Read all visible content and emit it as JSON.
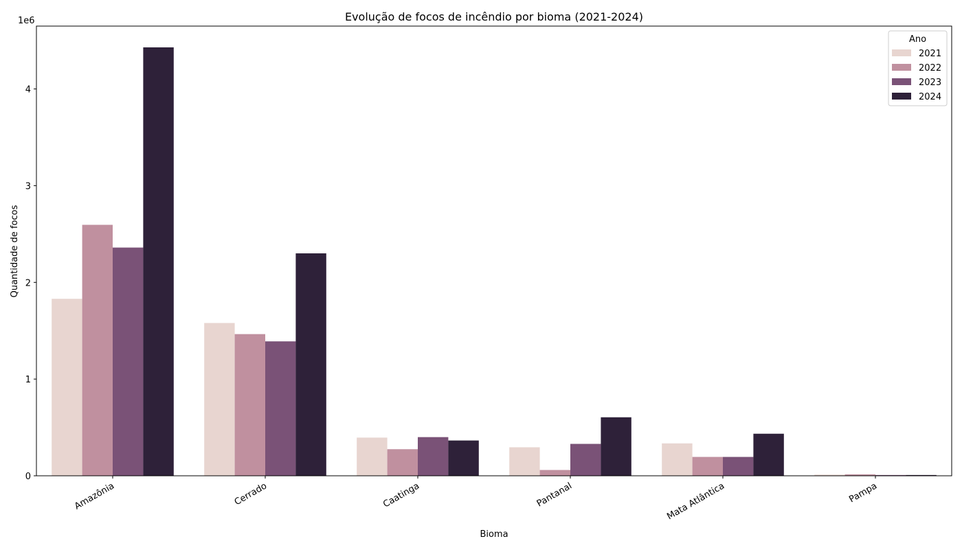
{
  "chart_data": {
    "type": "bar",
    "title": "Evolução de focos de incêndio por bioma (2021-2024)",
    "xlabel": "Bioma",
    "ylabel": "Quantidade de focos",
    "y_offset_text": "1e6",
    "ylim": [
      0,
      4650000
    ],
    "y_ticks": [
      0,
      1000000,
      2000000,
      3000000,
      4000000
    ],
    "y_tick_labels": [
      "0",
      "1",
      "2",
      "3",
      "4"
    ],
    "x_tick_rotation_deg": 30,
    "categories": [
      "Amazônia",
      "Cerrado",
      "Caatinga",
      "Pantanal",
      "Mata Atlântica",
      "Pampa"
    ],
    "series": [
      {
        "name": "2021",
        "color": "#e8d5d0",
        "values": [
          1830000,
          1580000,
          395000,
          295000,
          335000,
          12000
        ]
      },
      {
        "name": "2022",
        "color": "#c0909f",
        "values": [
          2595000,
          1465000,
          275000,
          60000,
          195000,
          15000
        ]
      },
      {
        "name": "2023",
        "color": "#7a5277",
        "values": [
          2360000,
          1390000,
          400000,
          330000,
          195000,
          8000
        ]
      },
      {
        "name": "2024",
        "color": "#2e2139",
        "values": [
          4430000,
          2300000,
          365000,
          605000,
          435000,
          8000
        ]
      }
    ],
    "legend": {
      "title": "Ano",
      "position": "top-right"
    },
    "grid": false
  }
}
